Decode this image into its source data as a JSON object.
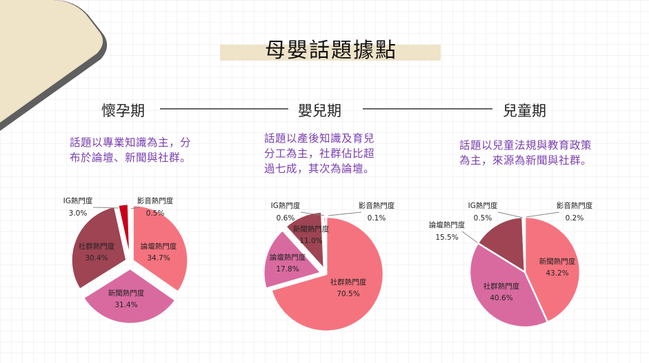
{
  "title": "母嬰話題據點",
  "stages": [
    {
      "name": "懷孕期",
      "desc_lines": [
        "話題以專業知識為主，分",
        "布於論壇、新聞與社群。"
      ]
    },
    {
      "name": "嬰兒期",
      "desc_lines": [
        "話題以產後知識及育兒",
        "分工為主，社群佔比超",
        "過七成，其次為論壇。"
      ]
    },
    {
      "name": "兒童期",
      "desc_lines": [
        "話題以兒童法規與教育政策",
        "為主，來源為新聞與社群。"
      ]
    }
  ],
  "chart_data": [
    {
      "type": "pie",
      "title": "懷孕期",
      "slices": [
        {
          "label": "論壇熱門度",
          "value": 34.7,
          "pct": "34.7%",
          "color": "#f5737f"
        },
        {
          "label": "新聞熱門度",
          "value": 31.4,
          "pct": "31.4%",
          "color": "#d96aa0"
        },
        {
          "label": "社群熱門度",
          "value": 30.4,
          "pct": "30.4%",
          "color": "#9e4453"
        },
        {
          "label": "IG熱門度",
          "value": 3.0,
          "pct": "3.0%",
          "color": "#c9001a"
        },
        {
          "label": "影音熱門度",
          "value": 0.5,
          "pct": "0.5%",
          "color": "#c42c5a"
        }
      ]
    },
    {
      "type": "pie",
      "title": "嬰兒期",
      "slices": [
        {
          "label": "社群熱門度",
          "value": 70.5,
          "pct": "70.5%",
          "color": "#f5737f"
        },
        {
          "label": "論壇熱門度",
          "value": 17.8,
          "pct": "17.8%",
          "color": "#d96aa0"
        },
        {
          "label": "新聞熱門度",
          "value": 11.0,
          "pct": "11.0%",
          "color": "#9e4453"
        },
        {
          "label": "IG熱門度",
          "value": 0.6,
          "pct": "0.6%",
          "color": "#c9001a"
        },
        {
          "label": "影音熱門度",
          "value": 0.1,
          "pct": "0.1%",
          "color": "#c42c5a"
        }
      ]
    },
    {
      "type": "pie",
      "title": "兒童期",
      "slices": [
        {
          "label": "新聞熱門度",
          "value": 43.2,
          "pct": "43.2%",
          "color": "#f5737f"
        },
        {
          "label": "社群熱門度",
          "value": 40.6,
          "pct": "40.6%",
          "color": "#d96aa0"
        },
        {
          "label": "論壇熱門度",
          "value": 15.5,
          "pct": "15.5%",
          "color": "#9e4453"
        },
        {
          "label": "IG熱門度",
          "value": 0.5,
          "pct": "0.5%",
          "color": "#c9001a"
        },
        {
          "label": "影音熱門度",
          "value": 0.2,
          "pct": "0.2%",
          "color": "#c42c5a"
        }
      ]
    }
  ]
}
